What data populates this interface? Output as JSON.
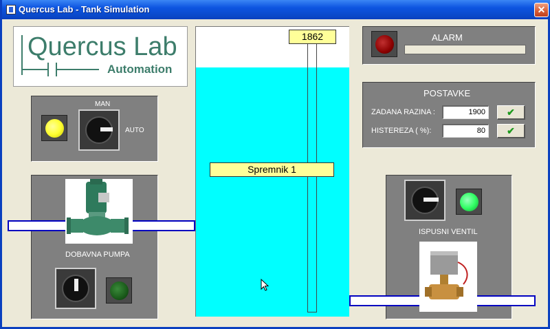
{
  "window": {
    "title": "Quercus Lab - Tank Simulation",
    "close_label": "✕"
  },
  "logo": {
    "name": "Quercus Lab",
    "subtitle": "Automation"
  },
  "mode": {
    "man_label": "MAN",
    "auto_label": "AUTO"
  },
  "pump": {
    "label": "DOBAVNA PUMPA"
  },
  "tank": {
    "level_value": "1862",
    "name": "Spremnik 1",
    "fill_fraction": 0.86
  },
  "alarm": {
    "label": "ALARM"
  },
  "settings": {
    "title": "POSTAVKE",
    "setpoint_label": "ZADANA RAZINA :",
    "setpoint_value": "1900",
    "hysteresis_label": "HISTEREZA ( %):",
    "hysteresis_value": "80",
    "confirm_symbol": "✔"
  },
  "valve": {
    "label": "ISPUSNI VENTIL"
  },
  "colors": {
    "water": "#00ffff",
    "pipe_border": "#0000c0",
    "label_bg": "#ffff99",
    "alarm_lamp": "#8b0000",
    "ready_lamp": "#ffff33",
    "status_lamp_on": "#33ff66",
    "status_lamp_off": "#1a5a1a"
  }
}
